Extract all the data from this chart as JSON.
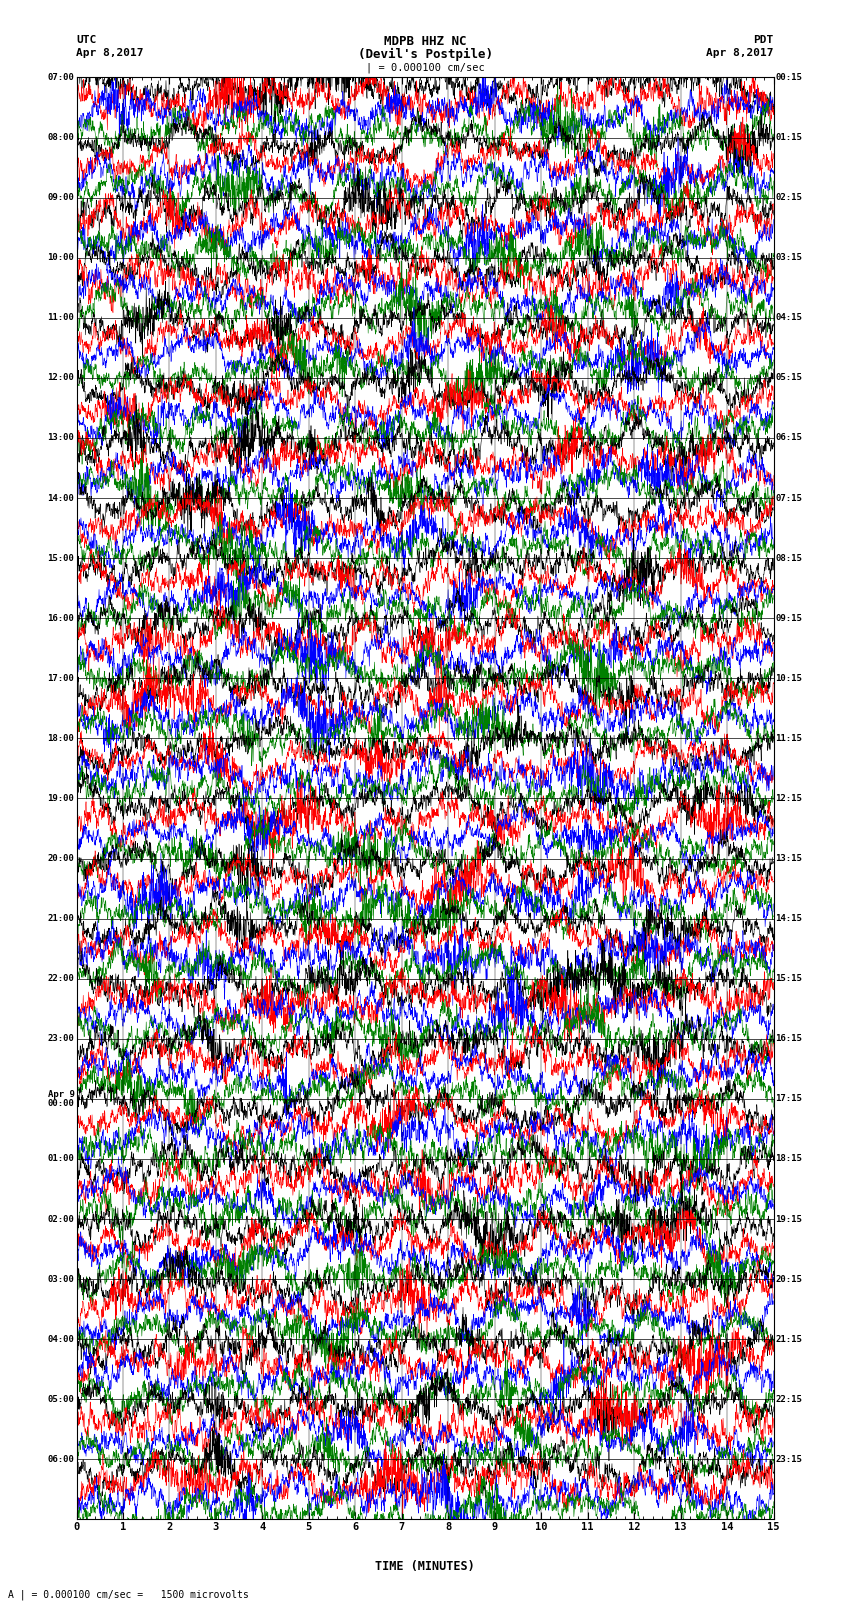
{
  "title_line1": "MDPB HHZ NC",
  "title_line2": "(Devil's Postpile)",
  "scale_label": "| = 0.000100 cm/sec",
  "utc_label": "UTC",
  "pdt_label": "PDT",
  "date_left": "Apr 8,2017",
  "date_right": "Apr 8,2017",
  "xlabel": "TIME (MINUTES)",
  "footer": "A | = 0.000100 cm/sec =   1500 microvolts",
  "left_times": [
    "07:00",
    "08:00",
    "09:00",
    "10:00",
    "11:00",
    "12:00",
    "13:00",
    "14:00",
    "15:00",
    "16:00",
    "17:00",
    "18:00",
    "19:00",
    "20:00",
    "21:00",
    "22:00",
    "23:00",
    "Apr 9",
    "01:00",
    "02:00",
    "03:00",
    "04:00",
    "05:00",
    "06:00"
  ],
  "left_times2": [
    "",
    "",
    "",
    "",
    "",
    "",
    "",
    "",
    "",
    "",
    "",
    "",
    "",
    "",
    "",
    "",
    "",
    "00:00",
    "",
    "",
    "",
    "",
    "",
    ""
  ],
  "right_times": [
    "00:15",
    "01:15",
    "02:15",
    "03:15",
    "04:15",
    "05:15",
    "06:15",
    "07:15",
    "08:15",
    "09:15",
    "10:15",
    "11:15",
    "12:15",
    "13:15",
    "14:15",
    "15:15",
    "16:15",
    "17:15",
    "18:15",
    "19:15",
    "20:15",
    "21:15",
    "22:15",
    "23:15"
  ],
  "n_rows": 24,
  "n_traces_per_row": 4,
  "colors": [
    "black",
    "red",
    "blue",
    "green"
  ],
  "minutes_per_row": 15,
  "bg_color": "white",
  "figwidth": 8.5,
  "figheight": 16.13,
  "dpi": 100,
  "grid_color": "black",
  "grid_lw": 0.5
}
